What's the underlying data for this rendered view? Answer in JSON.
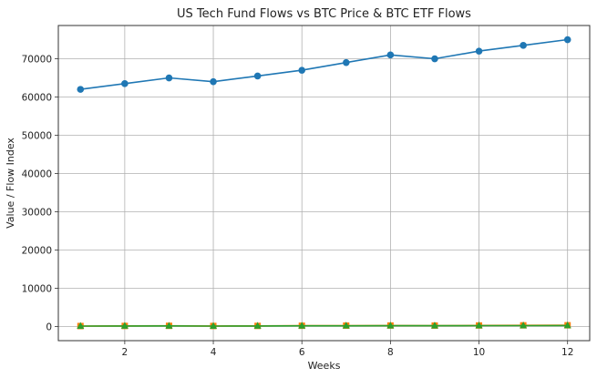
{
  "chart_data": {
    "type": "line",
    "title": "US Tech Fund Flows vs BTC Price & BTC ETF Flows",
    "xlabel": "Weeks",
    "ylabel": "Value / Flow Index",
    "x": [
      1,
      2,
      3,
      4,
      5,
      6,
      7,
      8,
      9,
      10,
      11,
      12
    ],
    "xlim": [
      0.5,
      12.5
    ],
    "ylim": [
      -3700,
      78700
    ],
    "xticks": [
      2,
      4,
      6,
      8,
      10,
      12
    ],
    "yticks": [
      0,
      10000,
      20000,
      30000,
      40000,
      50000,
      60000,
      70000
    ],
    "grid": true,
    "series": [
      {
        "color": "#1f77b4",
        "marker": "circle",
        "values": [
          62000,
          63500,
          65000,
          64000,
          65500,
          67000,
          69000,
          71000,
          70000,
          72000,
          73500,
          75000
        ]
      },
      {
        "color": "#ff7f0e",
        "marker": "square",
        "values": [
          120,
          150,
          180,
          140,
          160,
          200,
          230,
          260,
          240,
          270,
          300,
          320
        ]
      },
      {
        "color": "#2ca02c",
        "marker": "triangle",
        "values": [
          100,
          130,
          150,
          120,
          140,
          170,
          190,
          210,
          200,
          220,
          240,
          260
        ]
      }
    ]
  }
}
